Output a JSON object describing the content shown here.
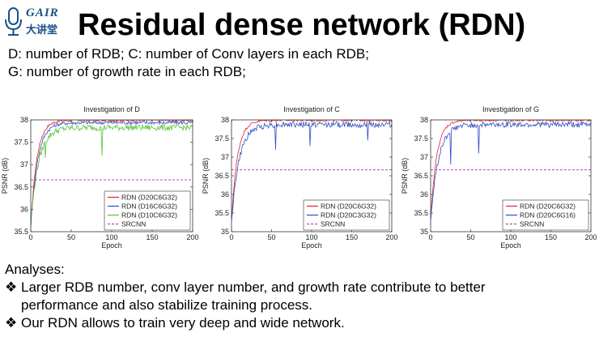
{
  "logo": {
    "main": "GAIR",
    "sub": "大讲堂"
  },
  "title": "Residual dense network (RDN)",
  "defs": [
    "D: number of RDB; C: number of Conv layers in each RDB;",
    "G: number of growth rate in each RDB;"
  ],
  "chart_data": [
    {
      "type": "line",
      "title": "Investigation of D",
      "xlabel": "Epoch",
      "ylabel": "PSNR (dB)",
      "xlim": [
        0,
        200
      ],
      "ylim": [
        35.5,
        38
      ],
      "xticks": [
        0,
        50,
        100,
        150,
        200
      ],
      "yticks": [
        35.5,
        36,
        36.5,
        37,
        37.5,
        38
      ],
      "legend_position": "bottom-right",
      "grid": false,
      "series": [
        {
          "name": "RDN (D20C6G32)",
          "color": "#e8202a",
          "style": "solid",
          "final": 38.0,
          "start": 35.6,
          "k": 0.045,
          "noise": 0.03,
          "dips": []
        },
        {
          "name": "RDN (D16C6G32)",
          "color": "#2e4fc4",
          "style": "solid",
          "final": 37.95,
          "start": 35.6,
          "k": 0.04,
          "noise": 0.04,
          "dips": []
        },
        {
          "name": "RDN (D10C6G32)",
          "color": "#58c13a",
          "style": "solid",
          "final": 37.85,
          "start": 35.7,
          "k": 0.035,
          "noise": 0.07,
          "dips": [
            [
              88,
              37.2
            ],
            [
              18,
              37.15
            ]
          ]
        },
        {
          "name": "SRCNN",
          "color": "#c040c0",
          "style": "dashed",
          "constant": 36.66
        }
      ]
    },
    {
      "type": "line",
      "title": "Investigation of C",
      "xlabel": "Epoch",
      "ylabel": "PSNR (dB)",
      "xlim": [
        0,
        200
      ],
      "ylim": [
        35,
        38
      ],
      "xticks": [
        0,
        50,
        100,
        150,
        200
      ],
      "yticks": [
        35,
        35.5,
        36,
        36.5,
        37,
        37.5,
        38
      ],
      "legend_position": "bottom-right",
      "grid": false,
      "series": [
        {
          "name": "RDN (D20C6G32)",
          "color": "#e8202a",
          "style": "solid",
          "final": 38.0,
          "start": 35.3,
          "k": 0.045,
          "noise": 0.03,
          "dips": []
        },
        {
          "name": "RDN (D20C3G32)",
          "color": "#2e4fc4",
          "style": "solid",
          "final": 37.9,
          "start": 35.3,
          "k": 0.035,
          "noise": 0.08,
          "dips": [
            [
              55,
              37.2
            ],
            [
              98,
              37.3
            ],
            [
              170,
              37.45
            ]
          ]
        },
        {
          "name": "SRCNN",
          "color": "#c040c0",
          "style": "dashed",
          "constant": 36.66
        }
      ]
    },
    {
      "type": "line",
      "title": "Investigation of G",
      "xlabel": "Epoch",
      "ylabel": "PSNR (dB)",
      "xlim": [
        0,
        200
      ],
      "ylim": [
        35,
        38
      ],
      "xticks": [
        0,
        50,
        100,
        150,
        200
      ],
      "yticks": [
        35,
        35.5,
        36,
        36.5,
        37,
        37.5,
        38
      ],
      "legend_position": "bottom-right",
      "grid": false,
      "series": [
        {
          "name": "RDN (D20C6G32)",
          "color": "#e8202a",
          "style": "solid",
          "final": 38.0,
          "start": 35.3,
          "k": 0.045,
          "noise": 0.03,
          "dips": []
        },
        {
          "name": "RDN (D20C6G16)",
          "color": "#2e4fc4",
          "style": "solid",
          "final": 37.9,
          "start": 35.3,
          "k": 0.035,
          "noise": 0.08,
          "dips": [
            [
              25,
              36.8
            ],
            [
              60,
              37.1
            ]
          ]
        },
        {
          "name": "SRCNN",
          "color": "#c040c0",
          "style": "dashed",
          "constant": 36.66
        }
      ]
    }
  ],
  "analyses": {
    "heading": "Analyses:",
    "bullet_glyph": "❖",
    "points": [
      "Larger RDB number, conv layer number, and growth rate contribute to better",
      "performance and also stabilize training process.",
      "Our RDN allows to train very deep and wide network."
    ]
  }
}
